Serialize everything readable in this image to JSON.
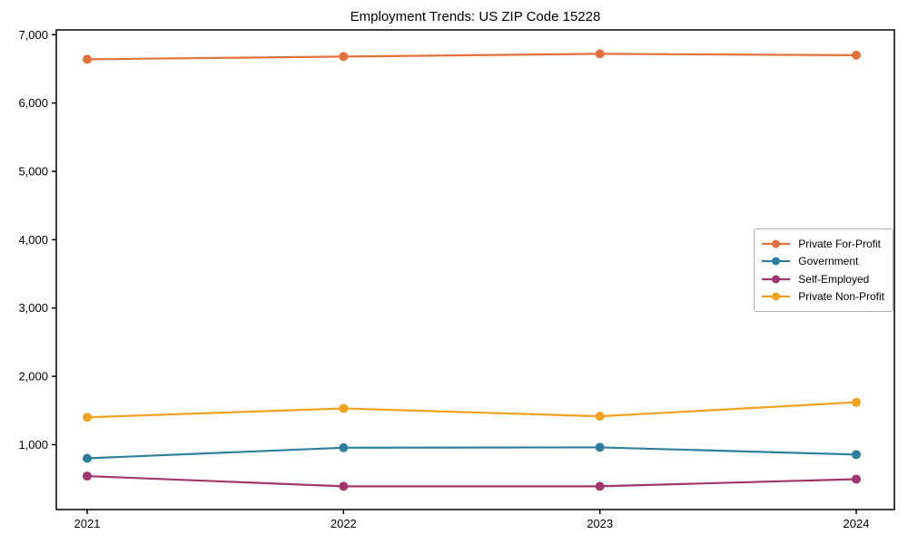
{
  "chart_data": {
    "type": "line",
    "title": "Employment Trends: US ZIP Code 15228",
    "xlabel": "",
    "ylabel": "",
    "categories": [
      "2021",
      "2022",
      "2023",
      "2024"
    ],
    "series": [
      {
        "name": "Private For-Profit",
        "color": "#e1703a",
        "values": [
          6640,
          6680,
          6720,
          6700
        ]
      },
      {
        "name": "Government",
        "color": "#2e7f9e",
        "values": [
          800,
          955,
          960,
          855
        ]
      },
      {
        "name": "Self-Employed",
        "color": "#a0366c",
        "values": [
          540,
          390,
          390,
          495
        ]
      },
      {
        "name": "Private Non-Profit",
        "color": "#efa11f",
        "values": [
          1400,
          1530,
          1415,
          1620
        ]
      }
    ],
    "ytick_values": [
      1000,
      2000,
      3000,
      4000,
      5000,
      6000,
      7000
    ],
    "ytick_labels": [
      "1,000",
      "2,000",
      "3,000",
      "4,000",
      "5,000",
      "6,000",
      "7,000"
    ],
    "ylim": [
      50,
      7070
    ],
    "grid": false,
    "legend_position": "center right",
    "frame_color": "#000000",
    "background_color": "#ffffff"
  }
}
